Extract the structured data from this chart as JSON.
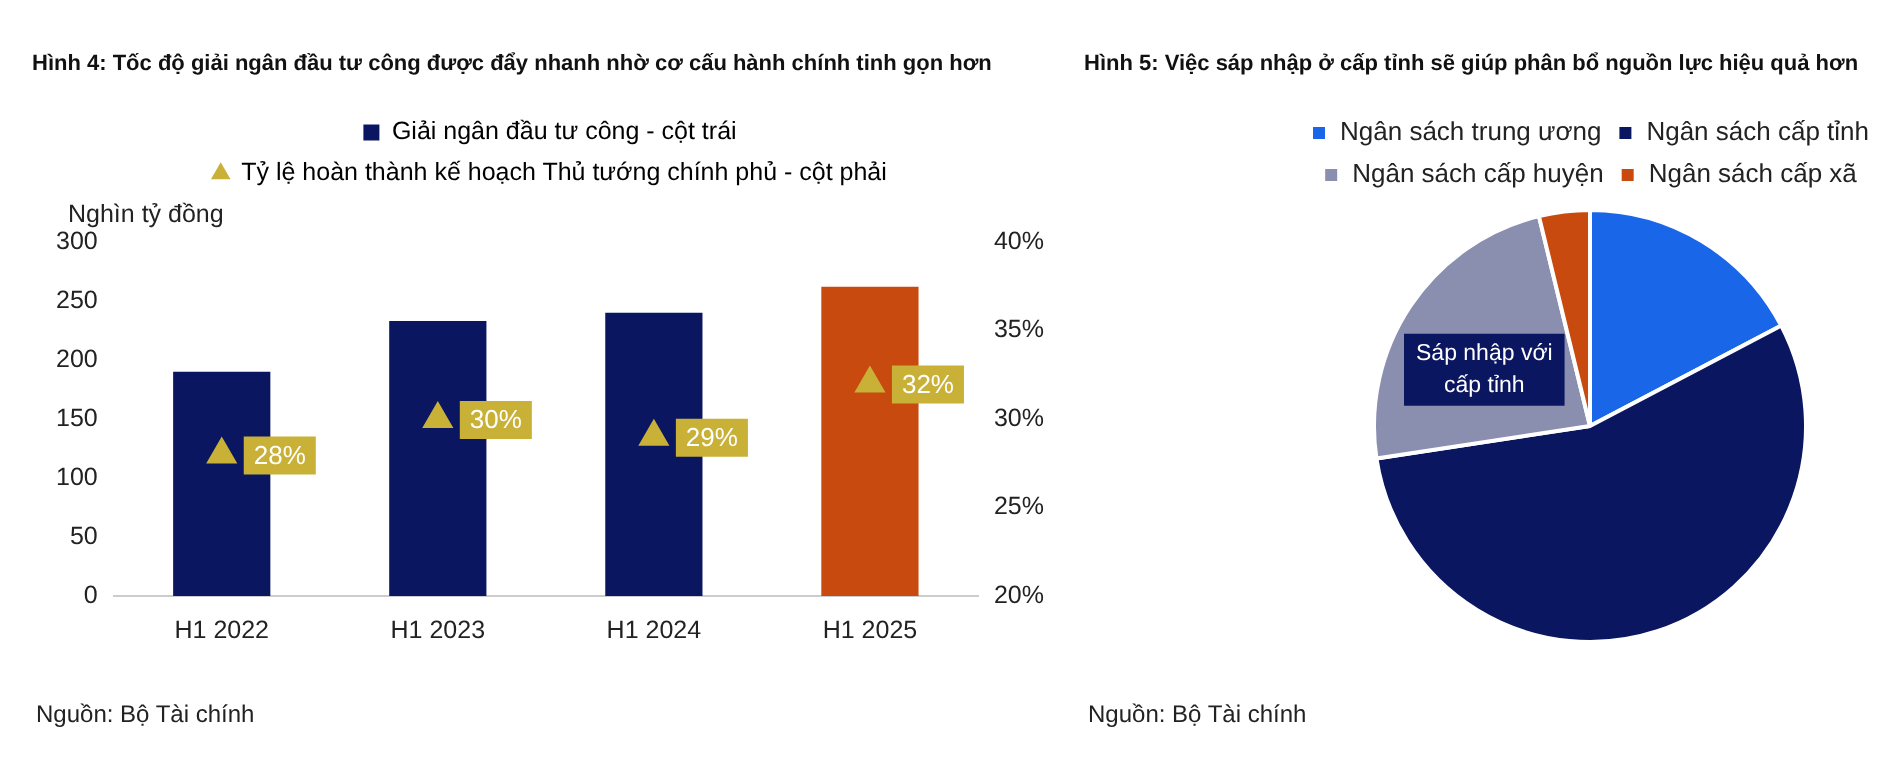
{
  "chart_data": [
    {
      "type": "bar",
      "title": "Hình 4: Tốc độ giải ngân đầu tư công được đẩy nhanh nhờ cơ cấu hành chính tinh gọn hơn",
      "ylabel": "Nghìn tỷ đồng",
      "categories": [
        "H1 2022",
        "H1 2023",
        "H1 2024",
        "H1 2025"
      ],
      "series": [
        {
          "name": "Giải ngân đầu tư công - cột trái",
          "type": "bar",
          "color": "#0b1660",
          "colors": [
            "#0b1660",
            "#0b1660",
            "#0b1660",
            "#c94a0e"
          ],
          "values": [
            190,
            233,
            240,
            262
          ]
        },
        {
          "name": "Tỷ lệ hoàn thành kế hoạch Thủ tướng chính phủ - cột phải",
          "type": "scatter",
          "axis": "y2",
          "color": "#c9b037",
          "marker": "triangle",
          "values": [
            28,
            30,
            29,
            32
          ],
          "value_labels": [
            "28%",
            "30%",
            "29%",
            "32%"
          ]
        }
      ],
      "ylim": [
        0,
        300
      ],
      "yticks": [
        0,
        50,
        100,
        150,
        200,
        250,
        300
      ],
      "y2lim": [
        20,
        40
      ],
      "y2ticks": [
        {
          "value": 20,
          "label": "20%"
        },
        {
          "value": 25,
          "label": "25%"
        },
        {
          "value": 30,
          "label": "30%"
        },
        {
          "value": 35,
          "label": "35%"
        },
        {
          "value": 40,
          "label": "40%"
        }
      ],
      "grid": false,
      "legend": "top",
      "annotations": [
        "Nguồn: Bộ Tài chính"
      ]
    },
    {
      "type": "pie",
      "title": "Hình 5: Việc sáp nhập ở cấp tỉnh sẽ giúp phân bổ nguồn lực hiệu quả hơn",
      "categories": [
        "Ngân sách trung ương",
        "Ngân sách cấp tỉnh",
        "Ngân sách cấp huyện",
        "Ngân sách cấp xã"
      ],
      "values": [
        17.3,
        55.3,
        23.6,
        3.8
      ],
      "colors": [
        "#1a66e8",
        "#0b1660",
        "#8a8fb0",
        "#c94a0e"
      ],
      "legend": "top",
      "annotations": [
        {
          "text": "Sáp nhập với cấp tỉnh",
          "x": "Ngân sách cấp huyện"
        },
        "Nguồn: Bộ Tài chính"
      ]
    }
  ]
}
